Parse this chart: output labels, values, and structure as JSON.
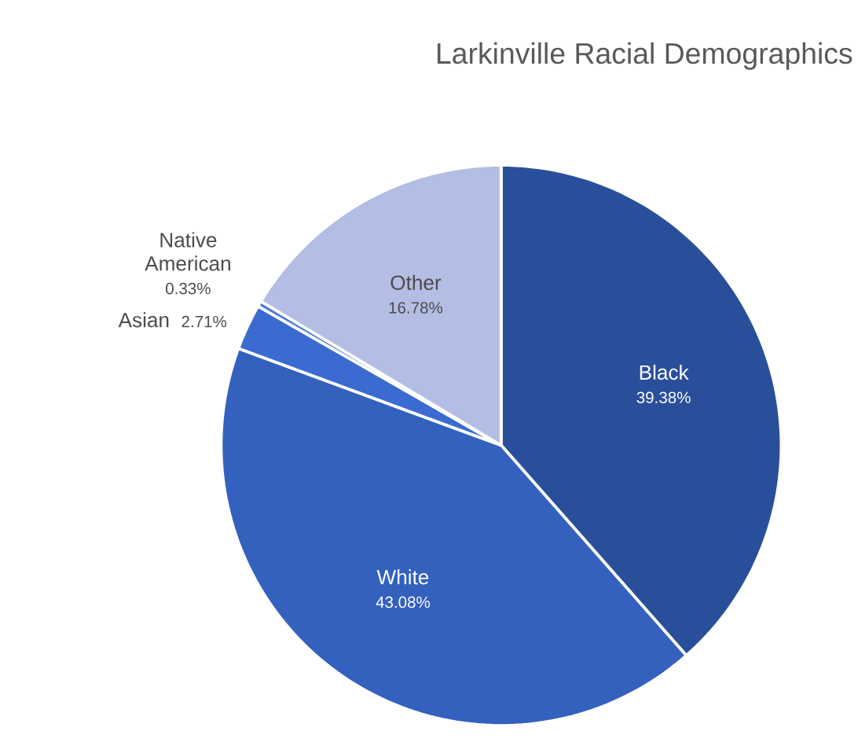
{
  "chart_data": {
    "type": "pie",
    "title": "Larkinville Racial Demographics",
    "categories": [
      "Black",
      "White",
      "Asian",
      "Native American",
      "Other"
    ],
    "values": [
      39.38,
      43.08,
      2.71,
      0.33,
      16.78
    ],
    "value_labels": [
      "39.38%",
      "43.08%",
      "2.71%",
      "0.33%",
      "16.78%"
    ],
    "colors": [
      "#2a4f9a",
      "#3461bd",
      "#3b6bd0",
      "#4a7ad8",
      "#b4bde3"
    ]
  }
}
